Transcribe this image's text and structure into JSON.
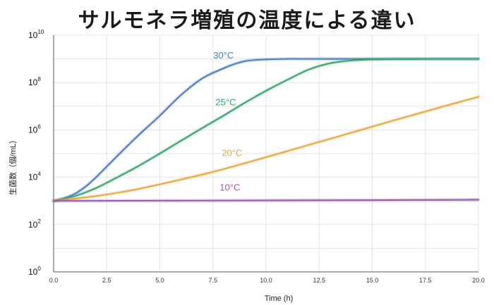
{
  "chart_data": {
    "type": "line",
    "title": "サルモネラ増殖の温度による違い",
    "xlabel": "Time (h)",
    "ylabel": "生菌数（個/mL）",
    "xlim": [
      0,
      20
    ],
    "ylim_log10": [
      0,
      10
    ],
    "yscale": "log",
    "grid": true,
    "x_ticks": [
      "0.0",
      "2.5",
      "5.0",
      "7.5",
      "10.0",
      "12.5",
      "15.0",
      "17.5",
      "20.0"
    ],
    "y_ticks": [
      {
        "base": "10",
        "exp": "0"
      },
      {
        "base": "10",
        "exp": "2"
      },
      {
        "base": "10",
        "exp": "4"
      },
      {
        "base": "10",
        "exp": "6"
      },
      {
        "base": "10",
        "exp": "8"
      },
      {
        "base": "10",
        "exp": "10"
      }
    ],
    "series": [
      {
        "name": "30°C",
        "color": "#4a7fc1",
        "x": [
          0,
          0.5,
          1,
          1.5,
          2,
          3,
          4,
          5,
          6,
          7,
          8,
          8.5,
          9,
          9.5,
          10,
          11,
          12,
          14,
          16,
          18,
          20
        ],
        "y": [
          1000,
          1300,
          2000,
          4000,
          10000,
          80000,
          600000,
          4000000,
          30000000,
          150000000,
          400000000,
          600000000,
          800000000,
          900000000,
          950000000,
          1000000000,
          1000000000,
          1000000000,
          1000000000,
          1000000000,
          1000000000
        ]
      },
      {
        "name": "25°C",
        "color": "#3aa46e",
        "x": [
          0,
          1,
          2,
          3,
          4,
          5,
          6,
          7,
          8,
          9,
          10,
          11,
          12,
          13,
          14,
          15,
          16,
          18,
          20
        ],
        "y": [
          1000,
          1600,
          3500,
          10000,
          30000,
          100000,
          350000,
          1200000,
          4000000,
          14000000,
          45000000,
          130000000,
          350000000,
          650000000,
          850000000,
          950000000,
          970000000,
          1000000000,
          1000000000
        ]
      },
      {
        "name": "20°C",
        "color": "#e5a940",
        "x": [
          0,
          1,
          2,
          3,
          4,
          5,
          6,
          7,
          8,
          10,
          12,
          14,
          16,
          18,
          20
        ],
        "y": [
          1000,
          1250,
          1600,
          2200,
          3200,
          5000,
          8000,
          13000,
          22000,
          70000,
          230000,
          750000,
          2500000,
          8000000,
          25000000
        ]
      },
      {
        "name": "10°C",
        "color": "#9b59b6",
        "x": [
          0,
          5,
          10,
          15,
          20
        ],
        "y": [
          1000,
          1020,
          1050,
          1080,
          1120
        ]
      }
    ]
  }
}
